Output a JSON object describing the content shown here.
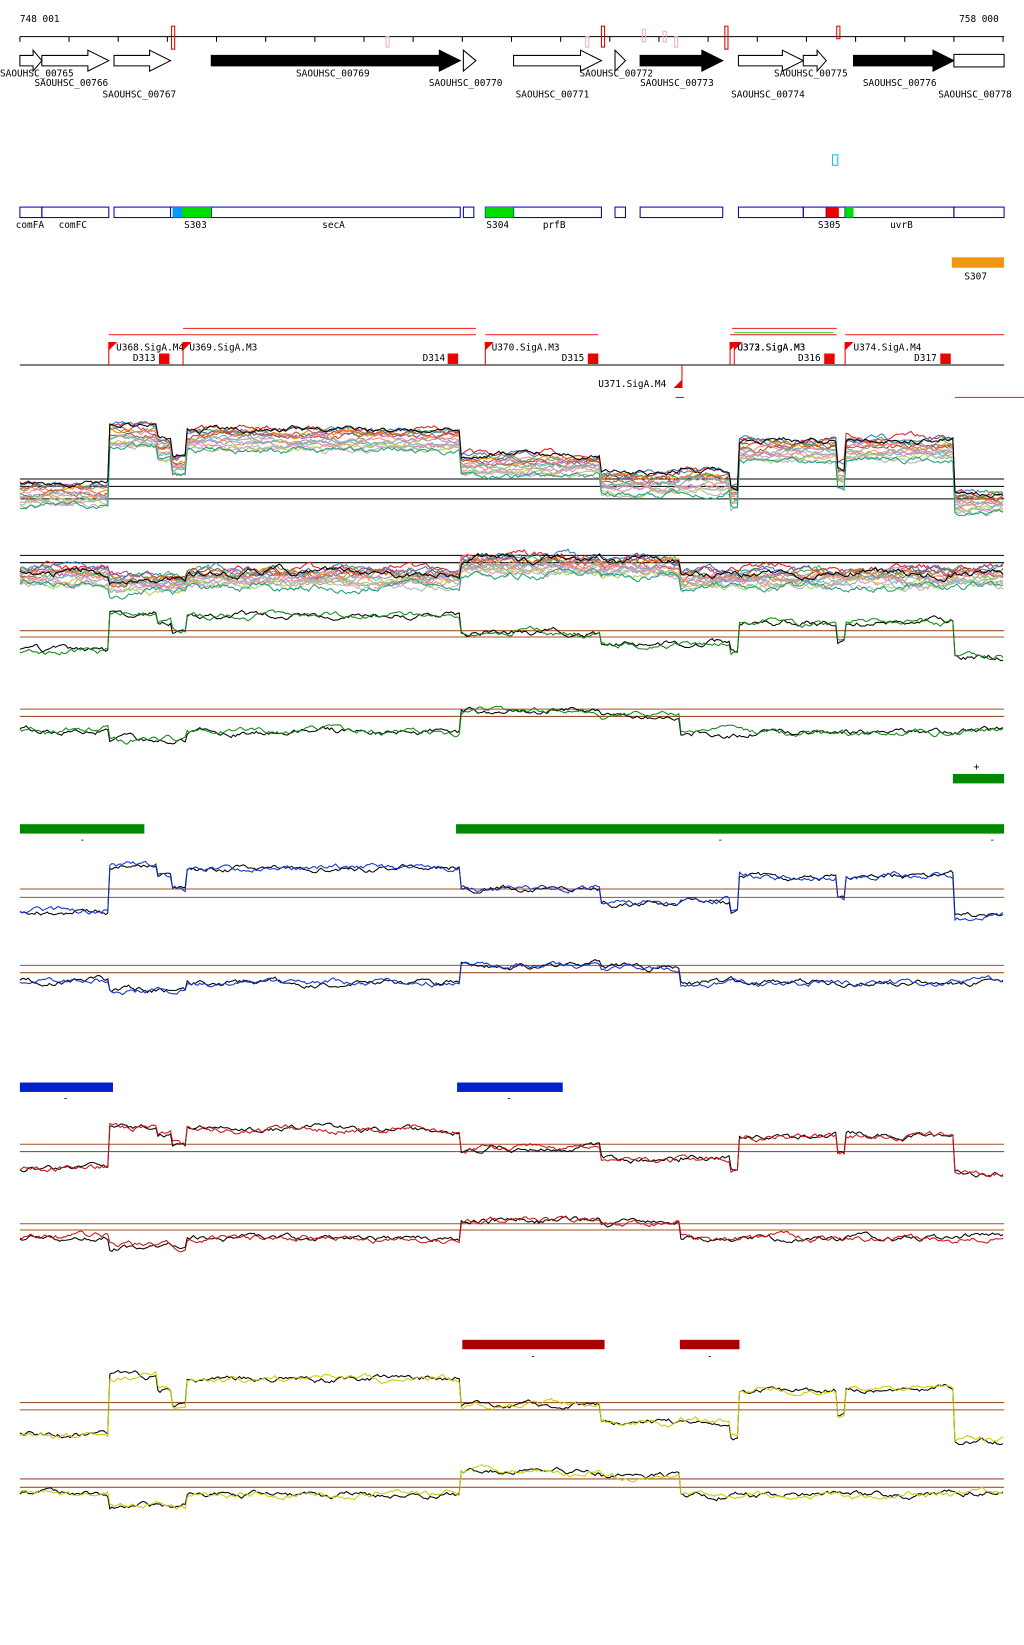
{
  "header": {
    "start": "748 001",
    "end": "758 000"
  },
  "genes": [
    "SAOUHSC_00765",
    "SAOUHSC_00766",
    "SAOUHSC_00767",
    "SAOUHSC_00769",
    "SAOUHSC_00770",
    "SAOUHSC_00771",
    "SAOUHSC_00772",
    "SAOUHSC_00773",
    "SAOUHSC_00774",
    "SAOUHSC_00775",
    "SAOUHSC_00776",
    "SAOUHSC_00778"
  ],
  "annotations": [
    "comFA",
    "comFC",
    "S303",
    "secA",
    "S304",
    "prfB",
    "S305",
    "uvrB",
    "S307"
  ],
  "promoters": [
    "U368.SigA.M4",
    "U369.SigA.M3",
    "U370.SigA.M3",
    "U371.SigA.M4",
    "U372.SigA.M3",
    "U373.SigA.M3",
    "U374.SigA.M4"
  ],
  "terminators": [
    "D313",
    "D314",
    "D315",
    "D316",
    "D317"
  ],
  "strand_marks": [
    "+",
    "-",
    "-",
    "-",
    "-",
    "-",
    "-",
    "-"
  ]
}
